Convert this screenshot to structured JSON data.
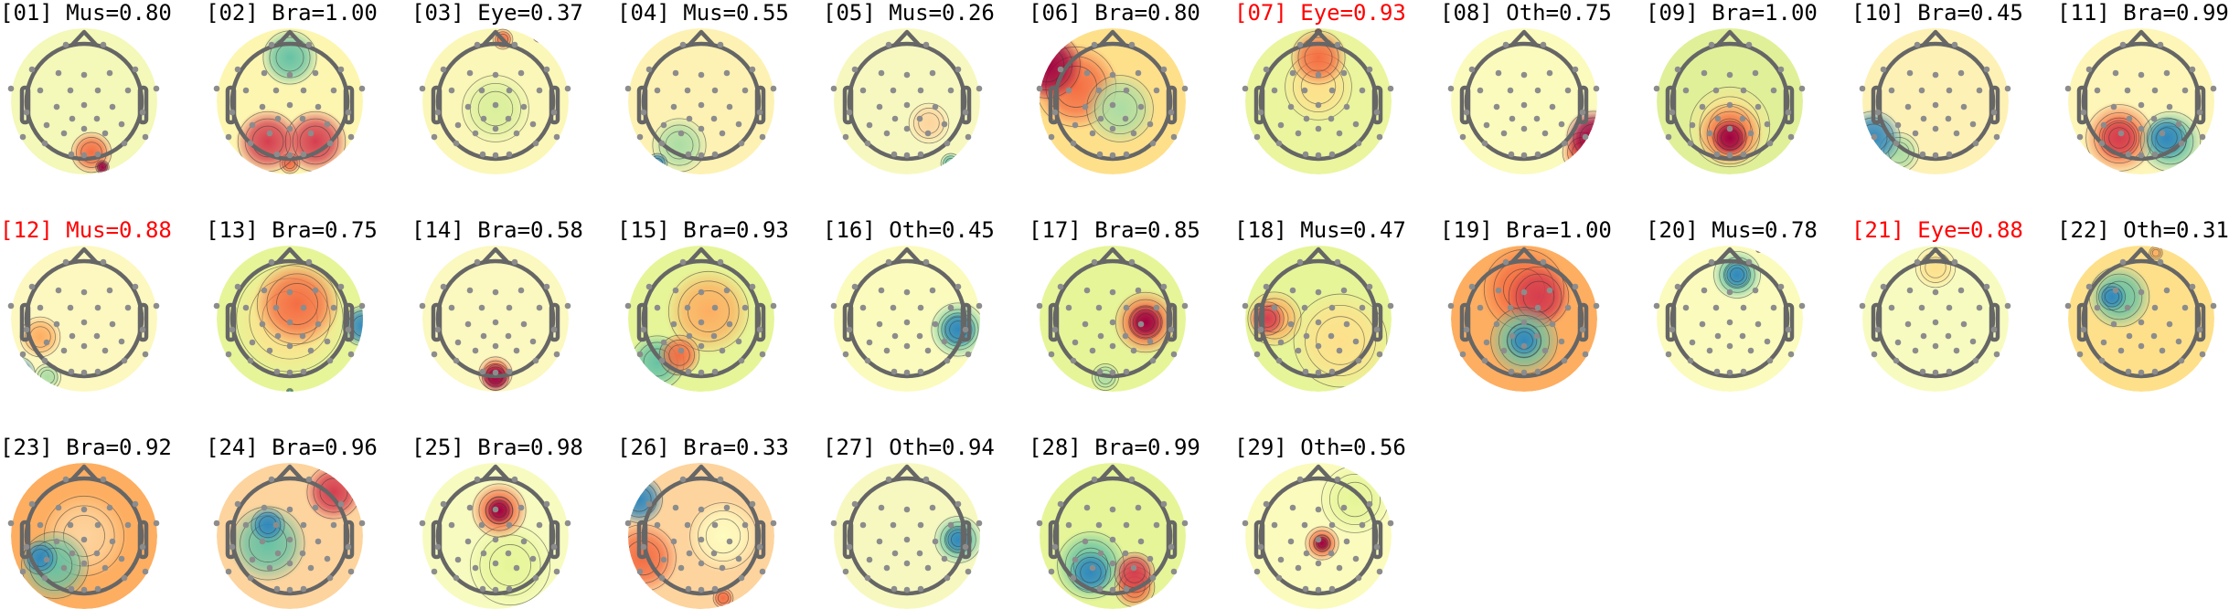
{
  "chart_data": {
    "type": "topomap-grid",
    "colormap": "Spectral_r",
    "highlight_color": "#ff0000",
    "text_color": "#000000",
    "components": [
      {
        "index": "01",
        "label": "Mus",
        "score": 0.8,
        "highlighted": false,
        "title": "[01] Mus=0.80"
      },
      {
        "index": "02",
        "label": "Bra",
        "score": 1.0,
        "highlighted": false,
        "title": "[02] Bra=1.00"
      },
      {
        "index": "03",
        "label": "Eye",
        "score": 0.37,
        "highlighted": false,
        "title": "[03] Eye=0.37"
      },
      {
        "index": "04",
        "label": "Mus",
        "score": 0.55,
        "highlighted": false,
        "title": "[04] Mus=0.55"
      },
      {
        "index": "05",
        "label": "Mus",
        "score": 0.26,
        "highlighted": false,
        "title": "[05] Mus=0.26"
      },
      {
        "index": "06",
        "label": "Bra",
        "score": 0.8,
        "highlighted": false,
        "title": "[06] Bra=0.80"
      },
      {
        "index": "07",
        "label": "Eye",
        "score": 0.93,
        "highlighted": true,
        "title": "[07] Eye=0.93"
      },
      {
        "index": "08",
        "label": "Oth",
        "score": 0.75,
        "highlighted": false,
        "title": "[08] Oth=0.75"
      },
      {
        "index": "09",
        "label": "Bra",
        "score": 1.0,
        "highlighted": false,
        "title": "[09] Bra=1.00"
      },
      {
        "index": "10",
        "label": "Bra",
        "score": 0.45,
        "highlighted": false,
        "title": "[10] Bra=0.45"
      },
      {
        "index": "11",
        "label": "Bra",
        "score": 0.99,
        "highlighted": false,
        "title": "[11] Bra=0.99"
      },
      {
        "index": "12",
        "label": "Mus",
        "score": 0.88,
        "highlighted": true,
        "title": "[12] Mus=0.88"
      },
      {
        "index": "13",
        "label": "Bra",
        "score": 0.75,
        "highlighted": false,
        "title": "[13] Bra=0.75"
      },
      {
        "index": "14",
        "label": "Bra",
        "score": 0.58,
        "highlighted": false,
        "title": "[14] Bra=0.58"
      },
      {
        "index": "15",
        "label": "Bra",
        "score": 0.93,
        "highlighted": false,
        "title": "[15] Bra=0.93"
      },
      {
        "index": "16",
        "label": "Oth",
        "score": 0.45,
        "highlighted": false,
        "title": "[16] Oth=0.45"
      },
      {
        "index": "17",
        "label": "Bra",
        "score": 0.85,
        "highlighted": false,
        "title": "[17] Bra=0.85"
      },
      {
        "index": "18",
        "label": "Mus",
        "score": 0.47,
        "highlighted": false,
        "title": "[18] Mus=0.47"
      },
      {
        "index": "19",
        "label": "Bra",
        "score": 1.0,
        "highlighted": false,
        "title": "[19] Bra=1.00"
      },
      {
        "index": "20",
        "label": "Mus",
        "score": 0.78,
        "highlighted": false,
        "title": "[20] Mus=0.78"
      },
      {
        "index": "21",
        "label": "Eye",
        "score": 0.88,
        "highlighted": true,
        "title": "[21] Eye=0.88"
      },
      {
        "index": "22",
        "label": "Oth",
        "score": 0.31,
        "highlighted": false,
        "title": "[22] Oth=0.31"
      },
      {
        "index": "23",
        "label": "Bra",
        "score": 0.92,
        "highlighted": false,
        "title": "[23] Bra=0.92"
      },
      {
        "index": "24",
        "label": "Bra",
        "score": 0.96,
        "highlighted": false,
        "title": "[24] Bra=0.96"
      },
      {
        "index": "25",
        "label": "Bra",
        "score": 0.98,
        "highlighted": false,
        "title": "[25] Bra=0.98"
      },
      {
        "index": "26",
        "label": "Bra",
        "score": 0.33,
        "highlighted": false,
        "title": "[26] Bra=0.33"
      },
      {
        "index": "27",
        "label": "Oth",
        "score": 0.94,
        "highlighted": false,
        "title": "[27] Oth=0.94"
      },
      {
        "index": "28",
        "label": "Bra",
        "score": 0.99,
        "highlighted": false,
        "title": "[28] Bra=0.99"
      },
      {
        "index": "29",
        "label": "Oth",
        "score": 0.56,
        "highlighted": false,
        "title": "[29] Oth=0.56"
      }
    ]
  }
}
